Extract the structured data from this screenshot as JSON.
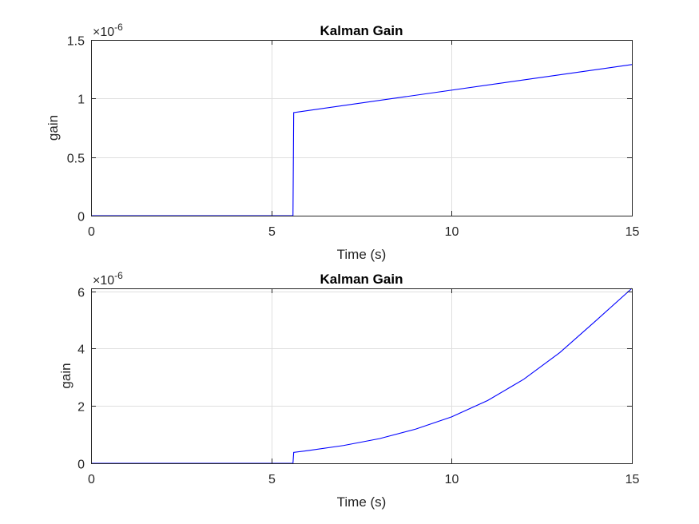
{
  "chart_data": [
    {
      "type": "line",
      "title": "Kalman Gain",
      "xlabel": "Time (s)",
      "ylabel": "gain",
      "exponent_label": "×10",
      "exponent_power": "-6",
      "xlim": [
        0,
        15
      ],
      "ylim": [
        0,
        1.5
      ],
      "xticks": [
        0,
        5,
        10,
        15
      ],
      "xtick_labels": [
        "0",
        "5",
        "10",
        "15"
      ],
      "yticks": [
        0,
        0.5,
        1,
        1.5
      ],
      "ytick_labels": [
        "0",
        "0.5",
        "1",
        "1.5"
      ],
      "grid": true,
      "series_color": "#0000ff",
      "series": [
        {
          "x": [
            0,
            5.6,
            5.62,
            15
          ],
          "y": [
            0,
            0,
            0.88,
            1.29
          ]
        }
      ]
    },
    {
      "type": "line",
      "title": "Kalman Gain",
      "xlabel": "Time (s)",
      "ylabel": "gain",
      "exponent_label": "×10",
      "exponent_power": "-6",
      "xlim": [
        0,
        15
      ],
      "ylim": [
        0,
        6.1
      ],
      "xticks": [
        0,
        5,
        10,
        15
      ],
      "xtick_labels": [
        "0",
        "5",
        "10",
        "15"
      ],
      "yticks": [
        0,
        2,
        4,
        6
      ],
      "ytick_labels": [
        "0",
        "2",
        "4",
        "6"
      ],
      "grid": true,
      "series_color": "#0000ff",
      "series": [
        {
          "x": [
            0,
            5.6,
            5.62,
            6,
            7,
            8,
            9,
            10,
            11,
            12,
            13,
            14,
            15
          ],
          "y": [
            0,
            0,
            0.38,
            0.44,
            0.62,
            0.86,
            1.19,
            1.62,
            2.19,
            2.93,
            3.86,
            4.97,
            6.1
          ]
        }
      ]
    }
  ]
}
